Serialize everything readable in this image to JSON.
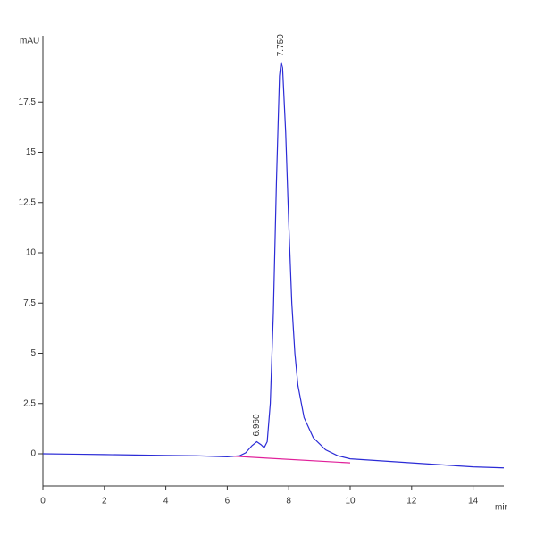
{
  "chart_data": {
    "type": "line",
    "y_label": "mAU",
    "x_label": "mir",
    "xlim": [
      0,
      15
    ],
    "ylim": [
      -1.6,
      20.8
    ],
    "xticks": [
      0,
      2,
      4,
      6,
      8,
      10,
      12,
      14
    ],
    "yticks": [
      0,
      2.5,
      5,
      7.5,
      10,
      12.5,
      15,
      17.5
    ],
    "series": [
      {
        "color": "#2b2bd6",
        "x": [
          0,
          1,
          2,
          3,
          4,
          5,
          6,
          6.4,
          6.6,
          6.8,
          6.96,
          7.1,
          7.2,
          7.3,
          7.4,
          7.5,
          7.6,
          7.7,
          7.75,
          7.8,
          7.9,
          8.0,
          8.1,
          8.2,
          8.3,
          8.5,
          8.8,
          9.2,
          9.6,
          10,
          11,
          12,
          13,
          14,
          15
        ],
        "values": [
          0,
          -0.02,
          -0.04,
          -0.06,
          -0.08,
          -0.1,
          -0.15,
          -0.1,
          0.05,
          0.4,
          0.6,
          0.45,
          0.3,
          0.6,
          2.5,
          7,
          13.5,
          18.8,
          19.5,
          19.2,
          16,
          11.5,
          7.5,
          5,
          3.4,
          1.8,
          0.8,
          0.2,
          -0.1,
          -0.25,
          -0.35,
          -0.45,
          -0.55,
          -0.65,
          -0.7
        ]
      },
      {
        "color": "#e0209a",
        "x": [
          6.2,
          7.1,
          10
        ],
        "values": [
          -0.12,
          -0.2,
          -0.45
        ]
      }
    ],
    "annotations": [
      {
        "x": 6.96,
        "y": 0.6,
        "label": "6.960"
      },
      {
        "x": 7.75,
        "y": 19.5,
        "label": "7.750"
      }
    ]
  }
}
